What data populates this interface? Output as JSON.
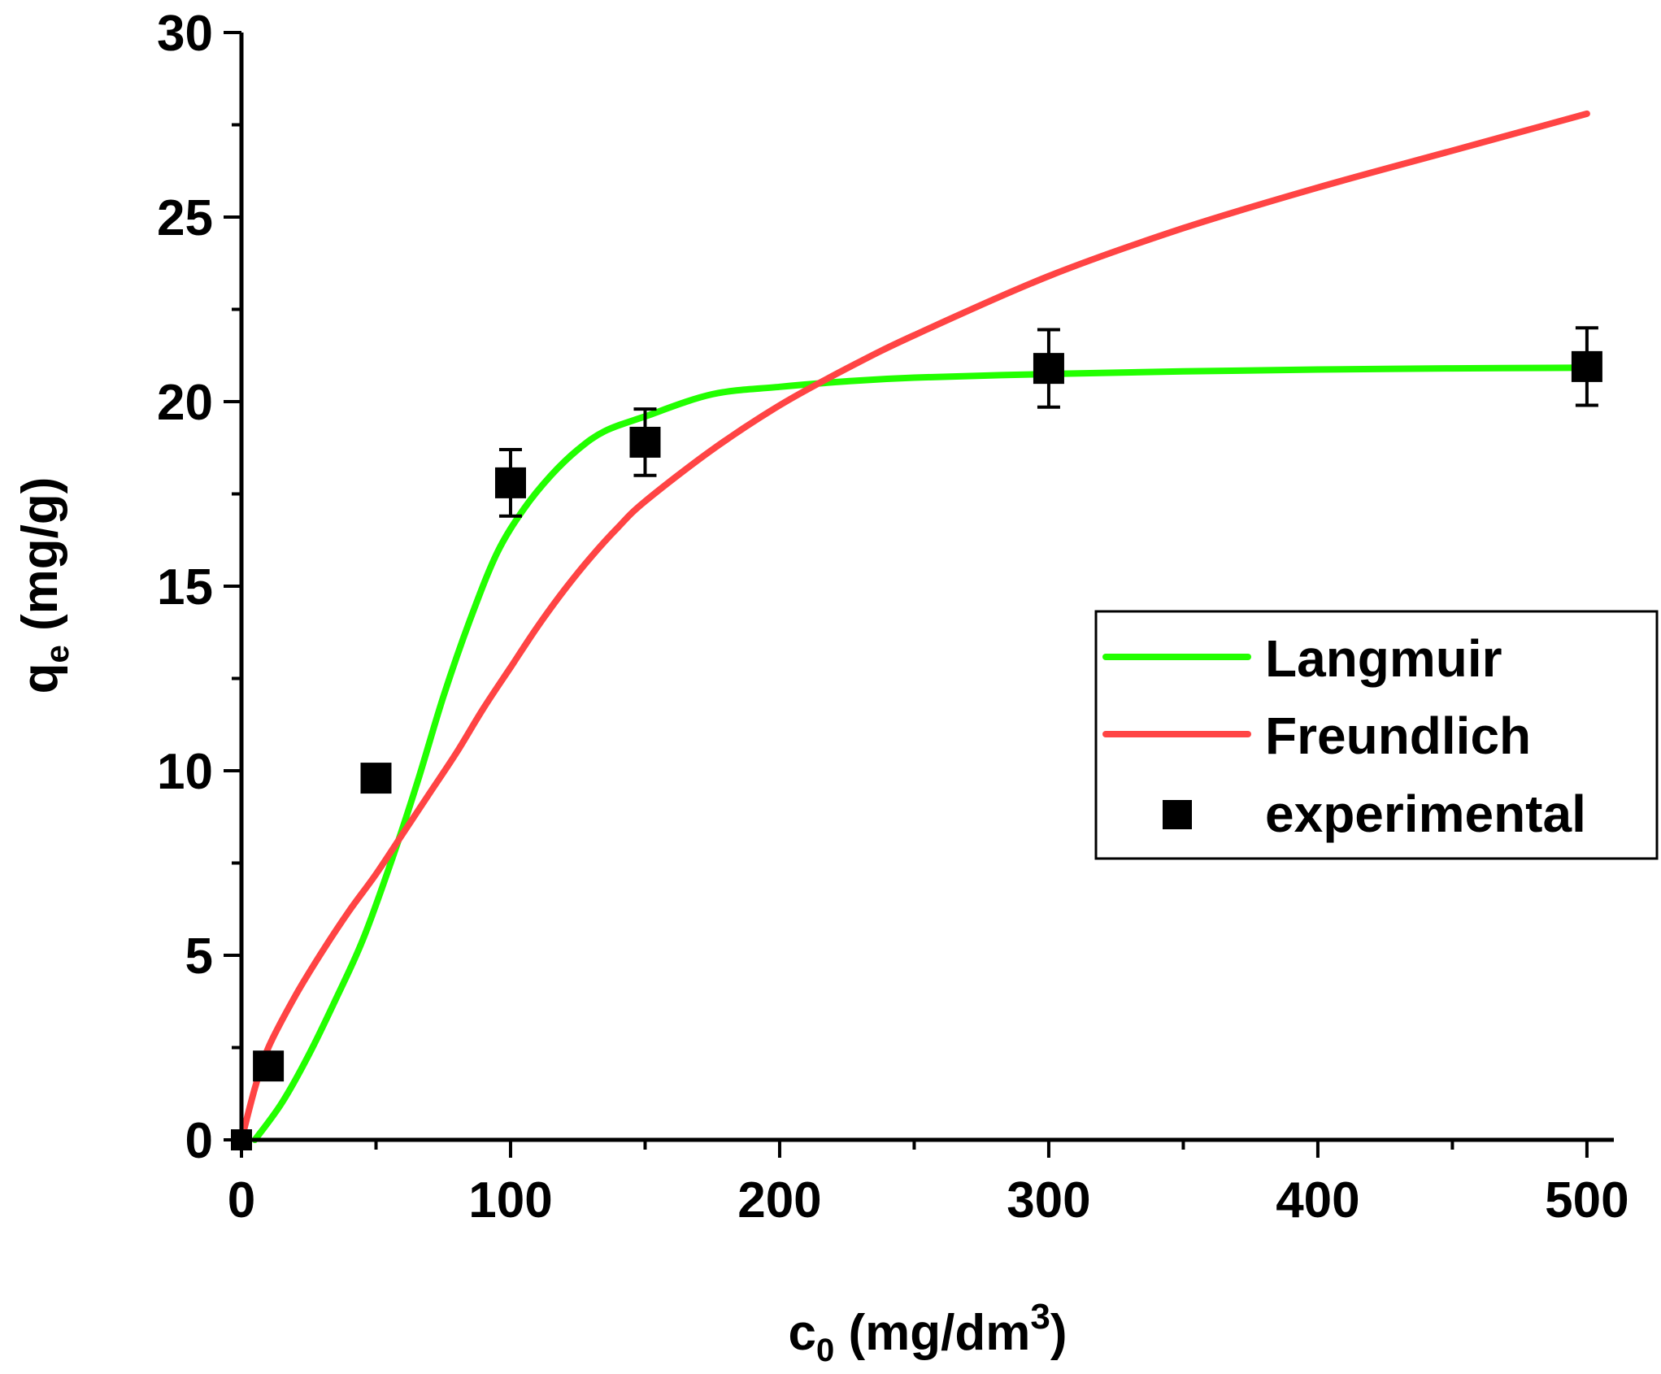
{
  "chart_data": {
    "type": "scatter",
    "title": "",
    "xlabel": {
      "main": "c",
      "sub": "0",
      "unit_pre": " (mg/dm",
      "sup": "3",
      "unit_post": ")"
    },
    "ylabel": {
      "main": "q",
      "sub": "e",
      "unit": " (mg/g)"
    },
    "xlim": [
      0,
      510
    ],
    "ylim": [
      0,
      30
    ],
    "x_ticks": [
      0,
      100,
      200,
      300,
      400,
      500
    ],
    "y_ticks": [
      0,
      5,
      10,
      15,
      20,
      25,
      30
    ],
    "grid": false,
    "legend_position": "center-right",
    "series": [
      {
        "name": "Langmuir",
        "kind": "line",
        "color": "#22ff00",
        "x": [
          5,
          15,
          25,
          35,
          45,
          55,
          65,
          75,
          85,
          95,
          105,
          115,
          125,
          135,
          150,
          175,
          200,
          225,
          250,
          300,
          350,
          400,
          450,
          500
        ],
        "y": [
          0,
          1.0,
          2.3,
          3.8,
          5.4,
          7.4,
          9.6,
          12.0,
          14.1,
          15.9,
          17.1,
          18.0,
          18.7,
          19.2,
          19.6,
          20.2,
          20.4,
          20.55,
          20.65,
          20.75,
          20.82,
          20.87,
          20.9,
          20.92
        ]
      },
      {
        "name": "Freundlich",
        "kind": "line",
        "color": "#ff4444",
        "x": [
          0,
          5,
          10,
          20,
          30,
          40,
          50,
          60,
          70,
          80,
          90,
          100,
          110,
          120,
          130,
          140,
          150,
          175,
          200,
          225,
          250,
          300,
          350,
          400,
          450,
          500
        ],
        "y": [
          0,
          1.4,
          2.5,
          3.9,
          5.1,
          6.2,
          7.2,
          8.3,
          9.4,
          10.5,
          11.7,
          12.8,
          13.9,
          14.9,
          15.8,
          16.6,
          17.3,
          18.7,
          19.9,
          20.9,
          21.8,
          23.4,
          24.7,
          25.8,
          26.8,
          27.8
        ]
      },
      {
        "name": "experimental",
        "kind": "scatter",
        "color": "#000000",
        "x": [
          0,
          10,
          50,
          100,
          150,
          300,
          500
        ],
        "y": [
          0,
          2.0,
          9.8,
          17.8,
          18.9,
          20.9,
          20.95
        ],
        "err": [
          0,
          0.1,
          0.2,
          0.9,
          0.9,
          1.05,
          1.05
        ]
      }
    ]
  }
}
